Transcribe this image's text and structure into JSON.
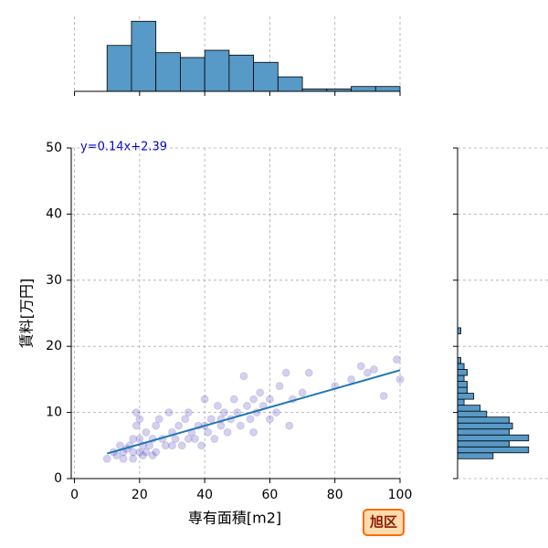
{
  "chart_data": [
    {
      "type": "scatter",
      "xlabel": "専有面積[m2]",
      "ylabel": "賃料[万円]",
      "annotation": "y=0.14x+2.39",
      "badge": "旭区",
      "x": [
        10,
        12,
        13,
        14,
        15,
        15,
        16,
        17,
        18,
        18,
        19,
        19,
        20,
        20,
        20,
        21,
        21,
        22,
        22,
        23,
        24,
        25,
        25,
        26,
        27,
        28,
        29,
        30,
        31,
        32,
        33,
        34,
        35,
        36,
        37,
        38,
        39,
        40,
        40,
        41,
        42,
        43,
        44,
        45,
        46,
        47,
        48,
        49,
        50,
        51,
        52,
        53,
        54,
        55,
        56,
        57,
        58,
        60,
        62,
        63,
        65,
        66,
        67,
        70,
        72,
        80,
        85,
        88,
        90,
        92,
        95,
        99,
        100,
        18,
        24,
        30,
        35,
        45,
        55,
        60
      ],
      "y": [
        3,
        4,
        3.5,
        5,
        4,
        3,
        4.5,
        5,
        6,
        3,
        8,
        10,
        4,
        6,
        9,
        5,
        3.5,
        7,
        4,
        5,
        6,
        8,
        4,
        9,
        6,
        5,
        10,
        7,
        6,
        8,
        5,
        9,
        10,
        7,
        6,
        8,
        5,
        12,
        8,
        7,
        9,
        6,
        11,
        8,
        10,
        7,
        9,
        12,
        10,
        8,
        15.5,
        11,
        9,
        12,
        10,
        13,
        11,
        12,
        10,
        14,
        16,
        8,
        12,
        13,
        16,
        14,
        15,
        17,
        16,
        16.5,
        12.5,
        18,
        15,
        4,
        3.5,
        5,
        6,
        9,
        7,
        9
      ],
      "color": "#3a2fb5",
      "fit": {
        "x": [
          10,
          100
        ],
        "y": [
          3.79,
          16.39
        ],
        "color": "#1f77b4"
      },
      "xlim": [
        -1,
        100
      ],
      "ylim": [
        0,
        50
      ],
      "xticks": [
        0,
        20,
        40,
        60,
        80,
        100
      ],
      "yticks": [
        0,
        10,
        20,
        30,
        40,
        50
      ],
      "grid": true
    },
    {
      "type": "histogram",
      "orientation": "vertical",
      "bins": [
        10,
        17.5,
        25,
        32.5,
        40,
        47.5,
        55,
        62.5,
        70,
        77.5,
        85,
        92.5,
        100
      ],
      "counts": [
        19,
        29,
        16,
        14,
        17,
        15,
        12,
        6,
        1,
        1,
        2,
        2
      ],
      "color": "#5799c7",
      "xlim": [
        -1,
        100
      ],
      "ylim": [
        0,
        31
      ],
      "xticks": [
        0,
        20,
        40,
        60,
        80,
        100
      ],
      "grid": true
    },
    {
      "type": "histogram",
      "orientation": "horizontal",
      "bins": [
        3,
        3.9,
        4.8,
        5.7,
        6.6,
        7.5,
        8.4,
        9.3,
        10.2,
        11.1,
        12,
        12.9,
        13.8,
        14.7,
        15.6,
        16.5,
        17.4,
        18.3,
        19.2,
        20.1,
        21,
        21.9,
        22.8
      ],
      "counts": [
        11,
        22,
        16,
        22,
        16,
        17,
        16,
        9,
        7,
        2,
        5,
        3,
        3,
        2,
        3,
        2,
        1,
        0,
        0,
        0,
        0,
        1
      ],
      "color": "#5799c7",
      "xlim": [
        0,
        28
      ],
      "ylim": [
        0,
        50
      ],
      "yticks": [
        0,
        10,
        20,
        30,
        40,
        50
      ],
      "grid": true
    }
  ]
}
